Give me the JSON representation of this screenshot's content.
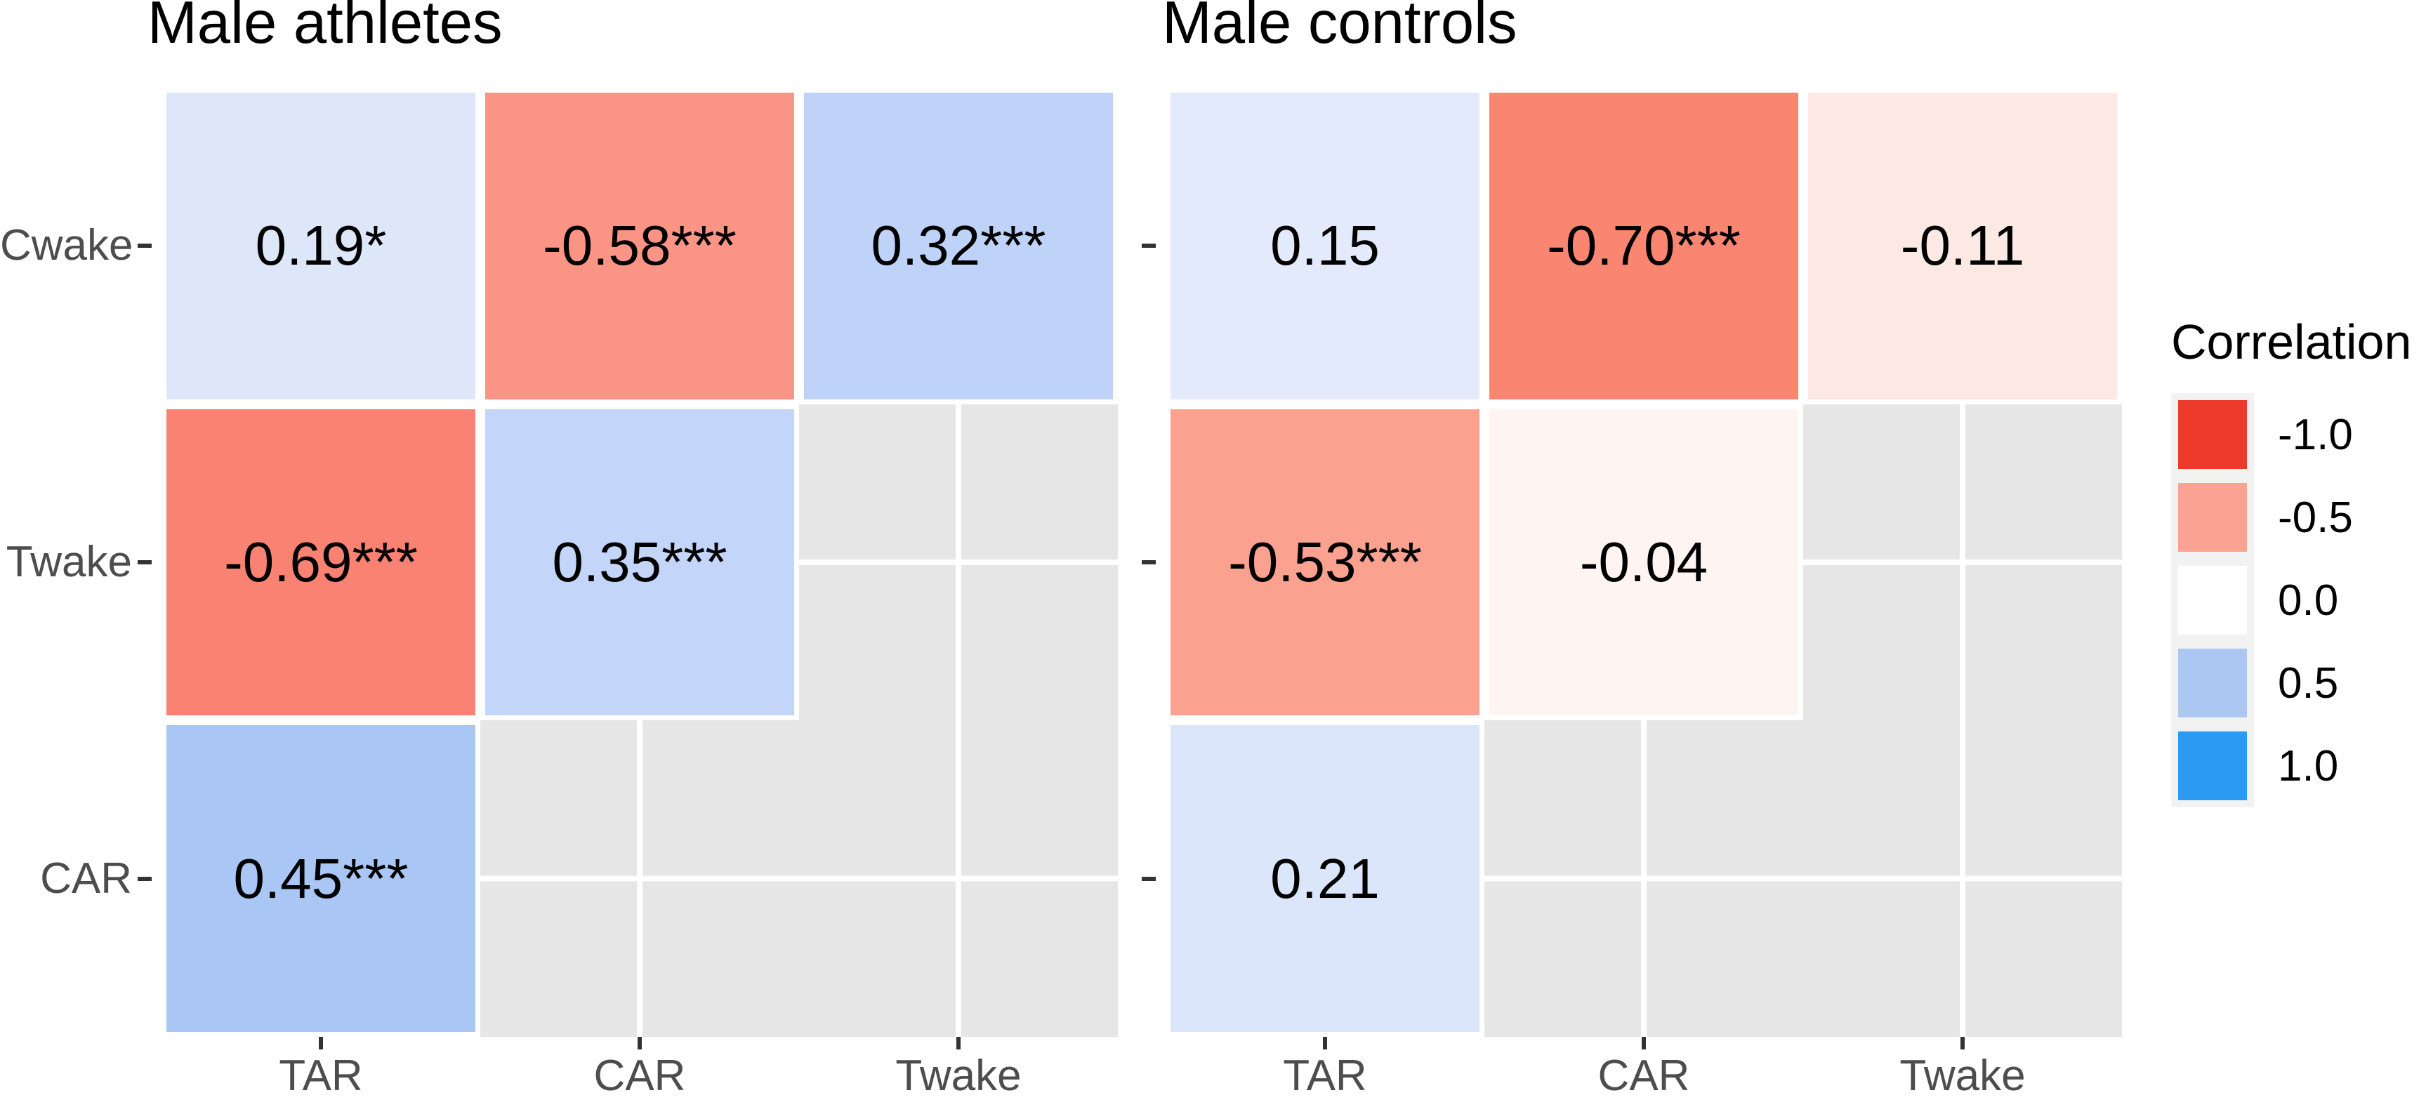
{
  "chart_data": [
    {
      "type": "heatmap",
      "title": "Male athletes",
      "x_categories": [
        "TAR",
        "CAR",
        "Twake"
      ],
      "y_categories": [
        "Cwake",
        "Twake",
        "CAR"
      ],
      "y_tick_labels_shown": true,
      "cells": [
        {
          "row": "Cwake",
          "col": "TAR",
          "value": 0.19,
          "label": "0.19*",
          "significance": "*",
          "color": "#DEE7FA"
        },
        {
          "row": "Cwake",
          "col": "CAR",
          "value": -0.58,
          "label": "-0.58***",
          "significance": "***",
          "color": "#FA9484"
        },
        {
          "row": "Cwake",
          "col": "Twake",
          "value": 0.32,
          "label": "0.32***",
          "significance": "***",
          "color": "#BFD3F8"
        },
        {
          "row": "Twake",
          "col": "TAR",
          "value": -0.69,
          "label": "-0.69***",
          "significance": "***",
          "color": "#F98272"
        },
        {
          "row": "Twake",
          "col": "CAR",
          "value": 0.35,
          "label": "0.35***",
          "significance": "***",
          "color": "#C3D6F9"
        },
        {
          "row": "CAR",
          "col": "TAR",
          "value": 0.45,
          "label": "0.45***",
          "significance": "***",
          "color": "#A9C6F4"
        }
      ],
      "missing_cells": [
        [
          "Twake",
          "Twake"
        ],
        [
          "CAR",
          "CAR"
        ],
        [
          "CAR",
          "Twake"
        ]
      ]
    },
    {
      "type": "heatmap",
      "title": "Male controls",
      "x_categories": [
        "TAR",
        "CAR",
        "Twake"
      ],
      "y_categories": [
        "Cwake",
        "Twake",
        "CAR"
      ],
      "y_tick_labels_shown": false,
      "cells": [
        {
          "row": "Cwake",
          "col": "TAR",
          "value": 0.15,
          "label": "0.15",
          "significance": "",
          "color": "#E3EAFB"
        },
        {
          "row": "Cwake",
          "col": "CAR",
          "value": -0.7,
          "label": "-0.70***",
          "significance": "***",
          "color": "#FA8571"
        },
        {
          "row": "Cwake",
          "col": "Twake",
          "value": -0.11,
          "label": "-0.11",
          "significance": "",
          "color": "#FCE9E3"
        },
        {
          "row": "Twake",
          "col": "TAR",
          "value": -0.53,
          "label": "-0.53***",
          "significance": "***",
          "color": "#FAA28F"
        },
        {
          "row": "Twake",
          "col": "CAR",
          "value": -0.04,
          "label": "-0.04",
          "significance": "",
          "color": "#FEF5F2"
        },
        {
          "row": "CAR",
          "col": "TAR",
          "value": 0.21,
          "label": "0.21",
          "significance": "",
          "color": "#DCE6FA"
        }
      ],
      "missing_cells": [
        [
          "Twake",
          "Twake"
        ],
        [
          "CAR",
          "CAR"
        ],
        [
          "CAR",
          "Twake"
        ]
      ]
    }
  ],
  "legend": {
    "title": "Correlation",
    "entries": [
      {
        "label": "-1.0",
        "value": -1.0,
        "color": "#EE392D"
      },
      {
        "label": "-0.5",
        "value": -0.5,
        "color": "#FAA392"
      },
      {
        "label": "0.0",
        "value": 0.0,
        "color": "#FFFFFF"
      },
      {
        "label": "0.5",
        "value": 0.5,
        "color": "#ABC8F3"
      },
      {
        "label": "1.0",
        "value": 1.0,
        "color": "#2A9AF2"
      }
    ]
  },
  "style": {
    "background_color": "#FFFFFF",
    "empty_cell_color": "#E6E6E6",
    "grid_line_color": "#FFFFFF",
    "axis_text_color": "#4D4D4D",
    "tick_color": "#333333",
    "title_color": "#000000",
    "cell_text_color": "#000000",
    "legend_key_bg": "#F2F2F2"
  }
}
